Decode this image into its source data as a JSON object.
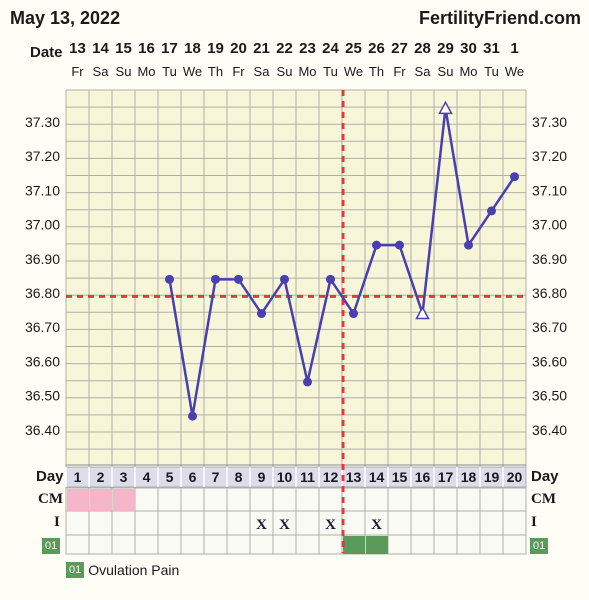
{
  "header": {
    "date": "May 13, 2022",
    "site": "FertilityFriend.com"
  },
  "row_labels": {
    "date": "Date",
    "day": "Day",
    "cm": "CM",
    "intercourse": "I",
    "ovulation_code": "01"
  },
  "legend": {
    "code": "01",
    "label": "Ovulation Pain"
  },
  "colors": {
    "line": "#4a3fb0",
    "coverline": "#e03a3a",
    "grid": "#b0b0a8",
    "plot_bg": "#f7f6d8",
    "cm_pink": "#f4b6c8",
    "ovulation_green": "#5a9a5a"
  },
  "chart_data": {
    "type": "line",
    "cycle_days": [
      1,
      2,
      3,
      4,
      5,
      6,
      7,
      8,
      9,
      10,
      11,
      12,
      13,
      14,
      15,
      16,
      17,
      18,
      19,
      20
    ],
    "dates": [
      "13",
      "14",
      "15",
      "16",
      "17",
      "18",
      "19",
      "20",
      "21",
      "22",
      "23",
      "24",
      "25",
      "26",
      "27",
      "28",
      "29",
      "30",
      "31",
      "1"
    ],
    "weekdays": [
      "Fr",
      "Sa",
      "Su",
      "Mo",
      "Tu",
      "We",
      "Th",
      "Fr",
      "Sa",
      "Su",
      "Mo",
      "Tu",
      "We",
      "Th",
      "Fr",
      "Sa",
      "Su",
      "Mo",
      "Tu",
      "We"
    ],
    "y_ticks": [
      "37.30",
      "37.20",
      "37.10",
      "37.00",
      "36.90",
      "36.80",
      "36.70",
      "36.60",
      "36.50",
      "36.40"
    ],
    "ylim": [
      36.3,
      37.35
    ],
    "series": [
      {
        "values": [
          null,
          null,
          null,
          null,
          36.84,
          36.44,
          36.84,
          36.84,
          36.74,
          36.84,
          36.54,
          36.84,
          36.74,
          36.94,
          36.94,
          36.74,
          37.34,
          36.94,
          37.04,
          37.14
        ],
        "markers": [
          "",
          "",
          "",
          "",
          "dot",
          "dot",
          "dot",
          "dot",
          "dot",
          "dot",
          "dot",
          "dot",
          "dot",
          "dot",
          "dot",
          "open-triangle",
          "open-triangle",
          "dot",
          "dot",
          "dot"
        ]
      }
    ],
    "coverline": 36.79,
    "ovulation_day": 13,
    "cervical_mucus": [
      1,
      2,
      3
    ],
    "intercourse": [
      9,
      10,
      12,
      14
    ],
    "intercourse_mark": "X",
    "ovulation_pain_days": [
      13,
      14
    ]
  }
}
